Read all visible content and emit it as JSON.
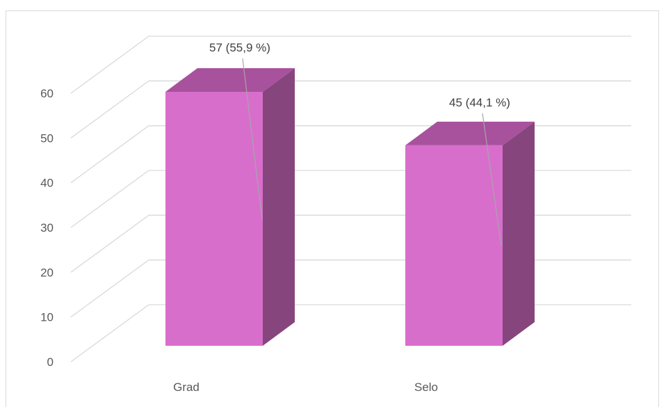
{
  "chart_data": {
    "type": "bar",
    "style": "3d-column",
    "categories": [
      "Grad",
      "Selo"
    ],
    "values": [
      57,
      45
    ],
    "data_labels": [
      "57 (55,9 %)",
      "45 (44,1 %)"
    ],
    "ylim": [
      0,
      60
    ],
    "y_ticks": [
      "0",
      "10",
      "20",
      "30",
      "40",
      "50",
      "60"
    ],
    "grid": true,
    "legend": "none",
    "colors": {
      "front": "#d86ecc",
      "top": "#a8519d",
      "side": "#87457d",
      "grid": "#d9d9d9",
      "leader": "#a6a6a6"
    }
  }
}
